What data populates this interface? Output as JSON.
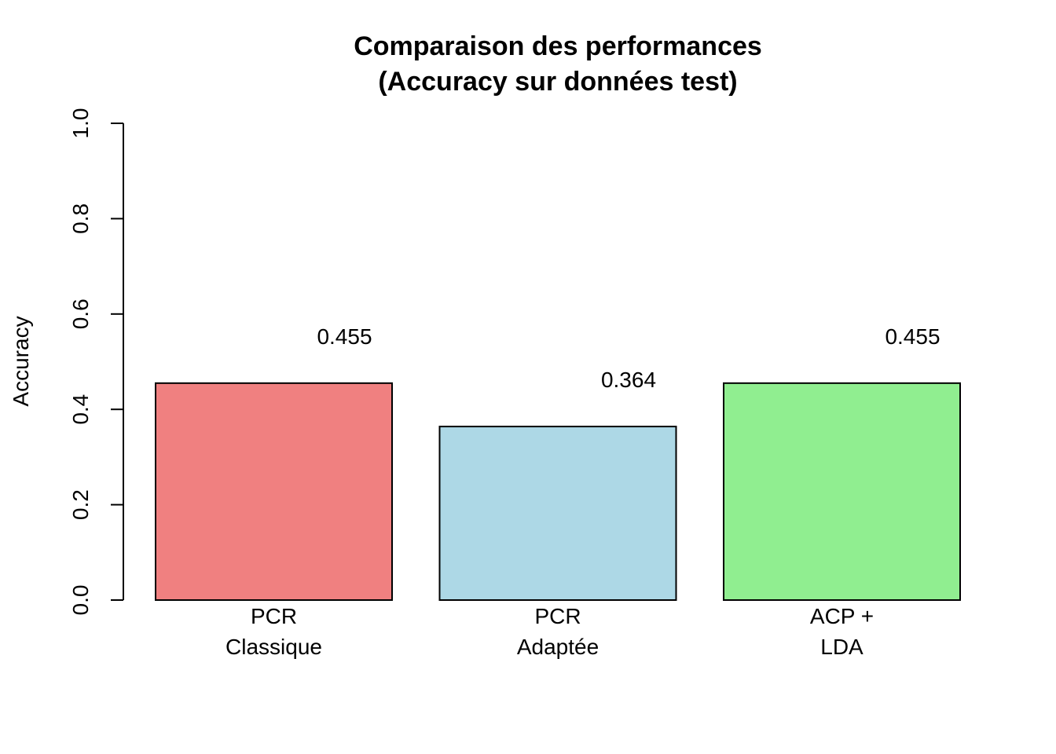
{
  "chart_data": {
    "type": "bar",
    "title_lines": [
      "Comparaison des performances",
      "(Accuracy sur données test)"
    ],
    "xlabel": "",
    "ylabel": "Accuracy",
    "ylim": [
      0,
      1
    ],
    "yticks": [
      "0.0",
      "0.2",
      "0.4",
      "0.6",
      "0.8",
      "1.0"
    ],
    "categories": [
      [
        "PCR",
        "Classique"
      ],
      [
        "PCR",
        "Adaptée"
      ],
      [
        "ACP +",
        "LDA"
      ]
    ],
    "values": [
      0.455,
      0.364,
      0.455
    ],
    "value_labels": [
      "0.455",
      "0.364",
      "0.455"
    ],
    "colors": [
      "#f08080",
      "#add8e6",
      "#90ee90"
    ],
    "grid": false,
    "legend": "none"
  }
}
